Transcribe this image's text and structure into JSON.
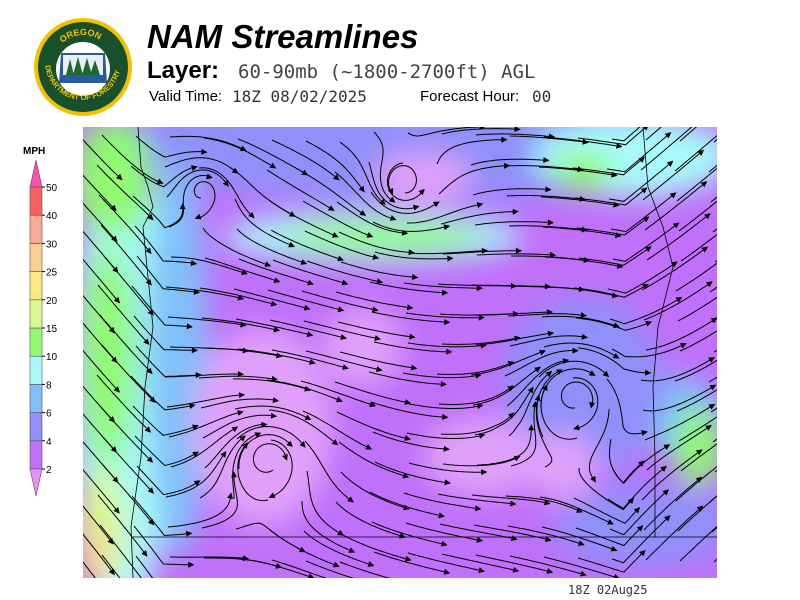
{
  "header": {
    "title": "NAM Streamlines",
    "layer_label": "Layer:",
    "layer_value": "60-90mb (~1800-2700ft) AGL",
    "valid_label": "Valid Time:",
    "valid_value": "18Z 08/02/2025",
    "forecast_label": "Forecast Hour:",
    "forecast_value": "00"
  },
  "logo": {
    "text_top": "OREGON",
    "text_bottom": "DEPARTMENT OF FORESTRY"
  },
  "legend": {
    "unit": "MPH",
    "ticks": [
      "2",
      "4",
      "6",
      "8",
      "10",
      "15",
      "20",
      "25",
      "30",
      "40",
      "50"
    ],
    "colors": [
      "#c070fa",
      "#9090fa",
      "#80c0fa",
      "#a8fafa",
      "#90fa70",
      "#d8fa90",
      "#faea80",
      "#fad090",
      "#faa898",
      "#fa6060"
    ],
    "arrow_top_color": "#fa50b0",
    "arrow_bottom_color": "#e890fa"
  },
  "map": {
    "timestamp": "18Z 02Aug25"
  }
}
